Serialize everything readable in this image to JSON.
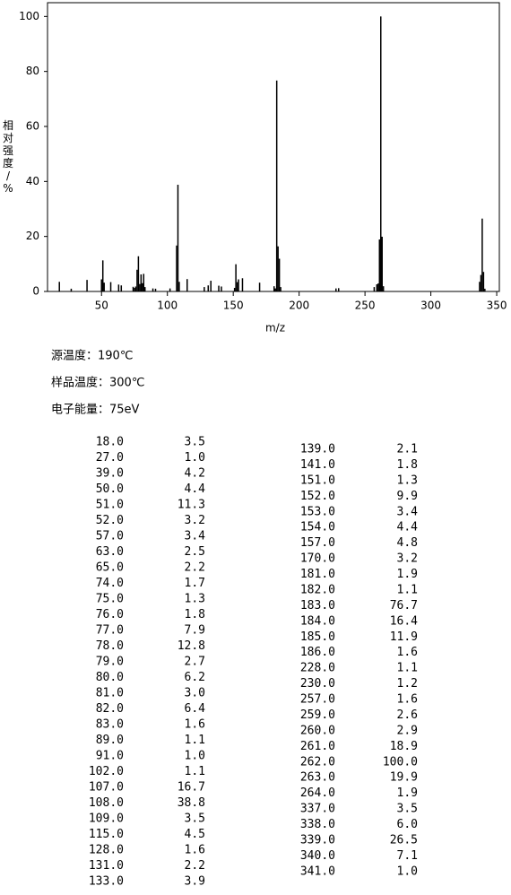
{
  "chart_data": {
    "type": "bar",
    "xlabel": "m/z",
    "ylabel": "相对强度/%",
    "x": [
      18,
      27,
      39,
      50,
      51,
      52,
      57,
      63,
      65,
      74,
      75,
      76,
      77,
      78,
      79,
      80,
      81,
      82,
      83,
      89,
      91,
      102,
      107,
      108,
      109,
      115,
      128,
      131,
      133,
      139,
      141,
      151,
      152,
      153,
      154,
      157,
      170,
      181,
      182,
      183,
      184,
      185,
      186,
      228,
      230,
      257,
      259,
      260,
      261,
      262,
      263,
      264,
      337,
      338,
      339,
      340,
      341
    ],
    "values": [
      3.5,
      1.0,
      4.2,
      4.4,
      11.3,
      3.2,
      3.4,
      2.5,
      2.2,
      1.7,
      1.3,
      1.8,
      7.9,
      12.8,
      2.7,
      6.2,
      3.0,
      6.4,
      1.6,
      1.1,
      1.0,
      1.1,
      16.7,
      38.8,
      3.5,
      4.5,
      1.6,
      2.2,
      3.9,
      2.1,
      1.8,
      1.3,
      9.9,
      3.4,
      4.4,
      4.8,
      3.2,
      1.9,
      1.1,
      76.7,
      16.4,
      11.9,
      1.6,
      1.1,
      1.2,
      1.6,
      2.6,
      2.9,
      18.9,
      100.0,
      19.9,
      1.9,
      3.5,
      6.0,
      26.5,
      7.1,
      1.0
    ],
    "color": "#000000",
    "xlim": [
      9,
      352
    ],
    "xticks": [
      50,
      100,
      150,
      200,
      250,
      300,
      350
    ],
    "ylim": [
      0,
      105
    ],
    "yticks": [
      0,
      20,
      40,
      60,
      80,
      100
    ]
  },
  "conditions": [
    "源温度：190℃",
    "样品温度：300℃",
    "电子能量：75eV"
  ],
  "table": {
    "left": [
      [
        "18.0",
        "3.5"
      ],
      [
        "27.0",
        "1.0"
      ],
      [
        "39.0",
        "4.2"
      ],
      [
        "50.0",
        "4.4"
      ],
      [
        "51.0",
        "11.3"
      ],
      [
        "52.0",
        "3.2"
      ],
      [
        "57.0",
        "3.4"
      ],
      [
        "63.0",
        "2.5"
      ],
      [
        "65.0",
        "2.2"
      ],
      [
        "74.0",
        "1.7"
      ],
      [
        "75.0",
        "1.3"
      ],
      [
        "76.0",
        "1.8"
      ],
      [
        "77.0",
        "7.9"
      ],
      [
        "78.0",
        "12.8"
      ],
      [
        "79.0",
        "2.7"
      ],
      [
        "80.0",
        "6.2"
      ],
      [
        "81.0",
        "3.0"
      ],
      [
        "82.0",
        "6.4"
      ],
      [
        "83.0",
        "1.6"
      ],
      [
        "89.0",
        "1.1"
      ],
      [
        "91.0",
        "1.0"
      ],
      [
        "102.0",
        "1.1"
      ],
      [
        "107.0",
        "16.7"
      ],
      [
        "108.0",
        "38.8"
      ],
      [
        "109.0",
        "3.5"
      ],
      [
        "115.0",
        "4.5"
      ],
      [
        "128.0",
        "1.6"
      ],
      [
        "131.0",
        "2.2"
      ],
      [
        "133.0",
        "3.9"
      ]
    ],
    "right": [
      [
        "139.0",
        "2.1"
      ],
      [
        "141.0",
        "1.8"
      ],
      [
        "151.0",
        "1.3"
      ],
      [
        "152.0",
        "9.9"
      ],
      [
        "153.0",
        "3.4"
      ],
      [
        "154.0",
        "4.4"
      ],
      [
        "157.0",
        "4.8"
      ],
      [
        "170.0",
        "3.2"
      ],
      [
        "181.0",
        "1.9"
      ],
      [
        "182.0",
        "1.1"
      ],
      [
        "183.0",
        "76.7"
      ],
      [
        "184.0",
        "16.4"
      ],
      [
        "185.0",
        "11.9"
      ],
      [
        "186.0",
        "1.6"
      ],
      [
        "228.0",
        "1.1"
      ],
      [
        "230.0",
        "1.2"
      ],
      [
        "257.0",
        "1.6"
      ],
      [
        "259.0",
        "2.6"
      ],
      [
        "260.0",
        "2.9"
      ],
      [
        "261.0",
        "18.9"
      ],
      [
        "262.0",
        "100.0"
      ],
      [
        "263.0",
        "19.9"
      ],
      [
        "264.0",
        "1.9"
      ],
      [
        "337.0",
        "3.5"
      ],
      [
        "338.0",
        "6.0"
      ],
      [
        "339.0",
        "26.5"
      ],
      [
        "340.0",
        "7.1"
      ],
      [
        "341.0",
        "1.0"
      ]
    ]
  }
}
